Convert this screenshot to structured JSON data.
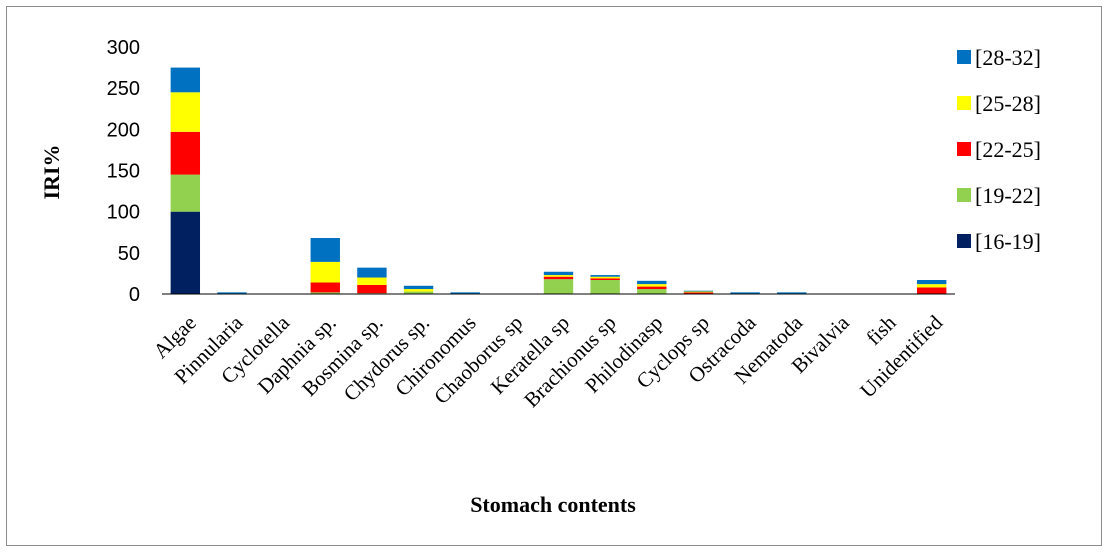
{
  "chart_data": {
    "type": "bar",
    "stacked": true,
    "xlabel": "Stomach contents",
    "ylabel": "IRI%",
    "ylim": [
      0,
      300
    ],
    "yticks": [
      0,
      50,
      100,
      150,
      200,
      250,
      300
    ],
    "grid": false,
    "legend_position": "right",
    "categories": [
      "Algae",
      "Pinnularia",
      "Cyclotella",
      "Daphnia sp.",
      "Bosmina sp.",
      "Chydorus sp.",
      "Chironomus",
      "Chaoborus sp",
      "Keratella sp",
      "Brachionus sp",
      "Philodinasp",
      "Cyclops sp",
      "Ostracoda",
      "Nematoda",
      "Bivalvia",
      "fish",
      "Unidentified"
    ],
    "series": [
      {
        "name": "[16-19]",
        "color": "#002060",
        "values": [
          100,
          0,
          0,
          0,
          0,
          0,
          0,
          0,
          0,
          0,
          0,
          0,
          0,
          0,
          0,
          0,
          0
        ]
      },
      {
        "name": "[19-22]",
        "color": "#92d050",
        "values": [
          45,
          0,
          0,
          2,
          1,
          3,
          0,
          0,
          18,
          17,
          6,
          0,
          0,
          0,
          0,
          0,
          0
        ]
      },
      {
        "name": "[22-25]",
        "color": "#ff0000",
        "values": [
          52,
          0,
          0,
          12,
          10,
          0,
          0,
          0,
          3,
          2,
          3,
          2,
          0,
          0,
          0,
          0,
          8
        ]
      },
      {
        "name": "[25-28]",
        "color": "#ffff00",
        "values": [
          48,
          0,
          0,
          25,
          9,
          3,
          0,
          0,
          2,
          2,
          3,
          1,
          0,
          0,
          0,
          0,
          4
        ]
      },
      {
        "name": "[28-32]",
        "color": "#0070c0",
        "values": [
          30,
          2,
          0,
          29,
          12,
          4,
          2,
          0,
          4,
          2,
          4,
          1,
          2,
          2,
          0,
          0,
          5
        ]
      }
    ]
  }
}
